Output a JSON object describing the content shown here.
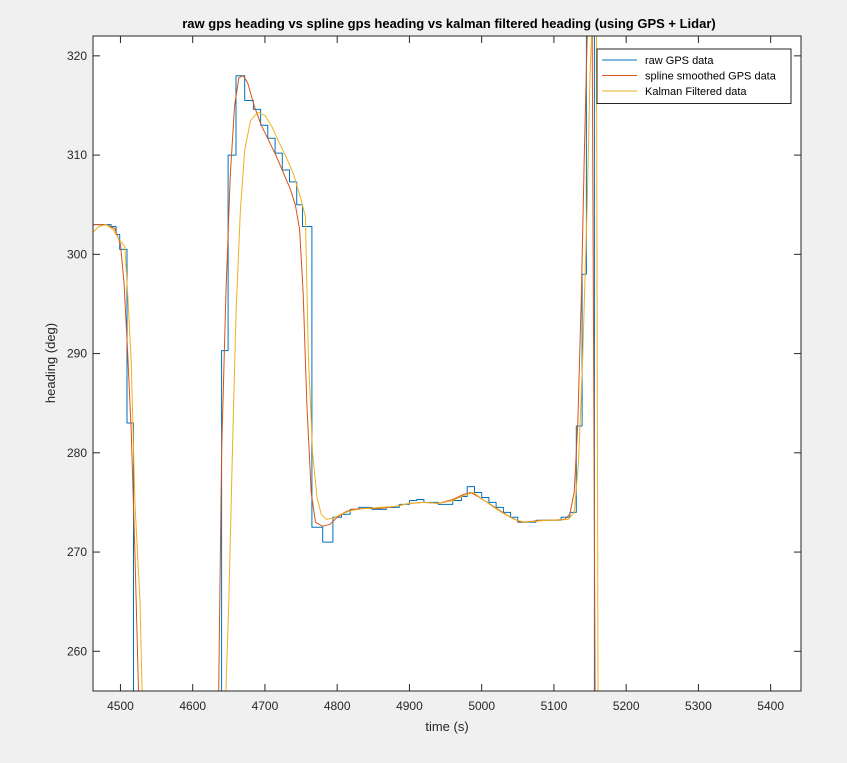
{
  "chart_data": {
    "type": "line",
    "title": "raw gps heading vs spline gps heading vs kalman filtered heading (using GPS + Lidar)",
    "xlabel": "time (s)",
    "ylabel": "heading (deg)",
    "xlim": [
      4462,
      5442
    ],
    "ylim": [
      256,
      322
    ],
    "xticks": [
      4500,
      4600,
      4700,
      4800,
      4900,
      5000,
      5100,
      5200,
      5300,
      5400
    ],
    "yticks": [
      260,
      270,
      280,
      290,
      300,
      310,
      320
    ],
    "grid": false,
    "legend": {
      "position": "top-right"
    },
    "series": [
      {
        "name": "raw GPS data",
        "color": "#0072BD",
        "step": true,
        "segments": [
          [
            [
              4462,
              303
            ],
            [
              4477,
              303
            ],
            [
              4487,
              302.8
            ],
            [
              4494,
              302
            ],
            [
              4499,
              300.5
            ],
            [
              4505,
              300.5
            ],
            [
              4509,
              283
            ],
            [
              4515,
              283
            ],
            [
              4518,
              256
            ]
          ],
          [
            [
              4638,
              256
            ],
            [
              4640,
              290.3
            ],
            [
              4646,
              290.3
            ],
            [
              4649,
              310
            ],
            [
              4656,
              310
            ],
            [
              4660,
              318
            ],
            [
              4668,
              318
            ],
            [
              4672,
              315.5
            ],
            [
              4679,
              315.5
            ],
            [
              4684,
              314.6
            ],
            [
              4690,
              314.6
            ],
            [
              4694,
              313
            ],
            [
              4700,
              313
            ],
            [
              4704,
              311.7
            ],
            [
              4710,
              311.7
            ],
            [
              4714,
              310.2
            ],
            [
              4720,
              310.2
            ],
            [
              4724,
              308.5
            ],
            [
              4730,
              308.5
            ],
            [
              4734,
              307.3
            ],
            [
              4740,
              307.3
            ],
            [
              4744,
              305
            ],
            [
              4748,
              305
            ],
            [
              4752,
              302.8
            ],
            [
              4757,
              302.8
            ],
            [
              4765,
              272.5
            ],
            [
              4776,
              272.5
            ],
            [
              4780,
              271
            ],
            [
              4789,
              271
            ],
            [
              4794,
              273.5
            ],
            [
              4800,
              273.5
            ],
            [
              4806,
              273.8
            ],
            [
              4812,
              273.8
            ],
            [
              4818,
              274.3
            ],
            [
              4824,
              274.3
            ],
            [
              4830,
              274.5
            ],
            [
              4840,
              274.5
            ],
            [
              4848,
              274.3
            ],
            [
              4858,
              274.3
            ],
            [
              4868,
              274.5
            ],
            [
              4878,
              274.5
            ],
            [
              4886,
              274.8
            ],
            [
              4894,
              274.8
            ],
            [
              4900,
              275.2
            ],
            [
              4906,
              275.2
            ],
            [
              4910,
              275.3
            ],
            [
              4916,
              275.3
            ],
            [
              4920,
              275
            ],
            [
              4930,
              275
            ],
            [
              4940,
              274.8
            ],
            [
              4950,
              274.8
            ],
            [
              4960,
              275.2
            ],
            [
              4966,
              275.2
            ],
            [
              4972,
              275.6
            ],
            [
              4976,
              275.6
            ],
            [
              4980,
              276.6
            ],
            [
              4987,
              276.6
            ],
            [
              4990,
              276
            ],
            [
              4995,
              276
            ],
            [
              5000,
              275.5
            ],
            [
              5005,
              275.5
            ],
            [
              5010,
              275
            ],
            [
              5015,
              275
            ],
            [
              5020,
              274.5
            ],
            [
              5025,
              274.5
            ],
            [
              5030,
              274
            ],
            [
              5035,
              274
            ],
            [
              5040,
              273.5
            ],
            [
              5045,
              273.5
            ],
            [
              5050,
              273
            ],
            [
              5058,
              273
            ],
            [
              5062,
              273
            ],
            [
              5070,
              273
            ],
            [
              5075,
              273.2
            ],
            [
              5085,
              273.2
            ],
            [
              5100,
              273.2
            ],
            [
              5105,
              273.2
            ],
            [
              5110,
              273.5
            ],
            [
              5118,
              273.5
            ],
            [
              5122,
              274
            ],
            [
              5128,
              274
            ],
            [
              5131,
              282.7
            ],
            [
              5136,
              282.7
            ],
            [
              5139,
              298
            ],
            [
              5143,
              298
            ],
            [
              5145,
              322
            ]
          ],
          [
            [
              5150,
              322
            ],
            [
              5156,
              256
            ]
          ]
        ]
      },
      {
        "name": "spline smoothed GPS data",
        "color": "#D95319",
        "step": false,
        "segments": [
          [
            [
              4462,
              303
            ],
            [
              4480,
              303
            ],
            [
              4492,
              302.6
            ],
            [
              4500,
              301
            ],
            [
              4505,
              297
            ],
            [
              4510,
              290
            ],
            [
              4515,
              282
            ],
            [
              4520,
              270
            ],
            [
              4525,
              256
            ]
          ],
          [
            [
              4636,
              256
            ],
            [
              4640,
              280
            ],
            [
              4646,
              296
            ],
            [
              4652,
              308
            ],
            [
              4658,
              315
            ],
            [
              4664,
              317.8
            ],
            [
              4670,
              318
            ],
            [
              4676,
              317.3
            ],
            [
              4685,
              315
            ],
            [
              4695,
              313
            ],
            [
              4705,
              311.5
            ],
            [
              4715,
              310
            ],
            [
              4725,
              308.3
            ],
            [
              4735,
              306.6
            ],
            [
              4742,
              305
            ],
            [
              4748,
              302.5
            ],
            [
              4753,
              296
            ],
            [
              4758,
              285
            ],
            [
              4764,
              276
            ],
            [
              4770,
              273
            ],
            [
              4780,
              272.6
            ],
            [
              4790,
              272.8
            ],
            [
              4800,
              273.5
            ],
            [
              4810,
              274
            ],
            [
              4820,
              274.3
            ],
            [
              4840,
              274.4
            ],
            [
              4860,
              274.4
            ],
            [
              4880,
              274.6
            ],
            [
              4900,
              274.9
            ],
            [
              4920,
              275
            ],
            [
              4940,
              274.9
            ],
            [
              4960,
              275.3
            ],
            [
              4975,
              275.8
            ],
            [
              4985,
              276
            ],
            [
              4995,
              275.6
            ],
            [
              5010,
              274.9
            ],
            [
              5025,
              274.2
            ],
            [
              5040,
              273.5
            ],
            [
              5055,
              273
            ],
            [
              5070,
              273.1
            ],
            [
              5085,
              273.2
            ],
            [
              5100,
              273.2
            ],
            [
              5115,
              273.3
            ],
            [
              5122,
              273.8
            ],
            [
              5128,
              276
            ],
            [
              5133,
              283
            ],
            [
              5138,
              296
            ],
            [
              5142,
              310
            ],
            [
              5146,
              322
            ]
          ],
          [
            [
              5153,
              322
            ],
            [
              5157,
              256
            ]
          ]
        ]
      },
      {
        "name": "Kalman Filtered data",
        "color": "#EDB120",
        "step": false,
        "segments": [
          [
            [
              4462,
              302.2
            ],
            [
              4470,
              302.8
            ],
            [
              4480,
              303
            ],
            [
              4490,
              302.5
            ],
            [
              4498,
              301.5
            ],
            [
              4506,
              300.8
            ],
            [
              4510,
              296
            ],
            [
              4515,
              289
            ],
            [
              4520,
              275
            ],
            [
              4527,
              265
            ],
            [
              4530,
              256
            ]
          ],
          [
            [
              4646,
              256
            ],
            [
              4650,
              265
            ],
            [
              4655,
              280
            ],
            [
              4660,
              294
            ],
            [
              4666,
              304.5
            ],
            [
              4672,
              310.5
            ],
            [
              4680,
              313.5
            ],
            [
              4690,
              314.3
            ],
            [
              4700,
              314
            ],
            [
              4710,
              312.8
            ],
            [
              4720,
              311.2
            ],
            [
              4730,
              309.7
            ],
            [
              4740,
              308
            ],
            [
              4750,
              305.5
            ],
            [
              4756,
              303.8
            ],
            [
              4760,
              290
            ],
            [
              4766,
              280
            ],
            [
              4772,
              275.5
            ],
            [
              4778,
              273.8
            ],
            [
              4785,
              273.3
            ],
            [
              4795,
              273.4
            ],
            [
              4805,
              273.8
            ],
            [
              4820,
              274.2
            ],
            [
              4840,
              274.4
            ],
            [
              4860,
              274.5
            ],
            [
              4880,
              274.6
            ],
            [
              4900,
              274.9
            ],
            [
              4920,
              275
            ],
            [
              4940,
              274.9
            ],
            [
              4960,
              275.2
            ],
            [
              4975,
              275.7
            ],
            [
              4988,
              276
            ],
            [
              5000,
              275.4
            ],
            [
              5015,
              274.6
            ],
            [
              5030,
              273.9
            ],
            [
              5045,
              273.3
            ],
            [
              5060,
              273
            ],
            [
              5075,
              273.1
            ],
            [
              5090,
              273.2
            ],
            [
              5105,
              273.2
            ],
            [
              5120,
              273.3
            ],
            [
              5128,
              274
            ],
            [
              5134,
              279
            ],
            [
              5140,
              290
            ],
            [
              5146,
              305
            ],
            [
              5150,
              318
            ],
            [
              5152,
              322
            ]
          ],
          [
            [
              5159,
              322
            ],
            [
              5161,
              256
            ]
          ]
        ]
      }
    ]
  }
}
